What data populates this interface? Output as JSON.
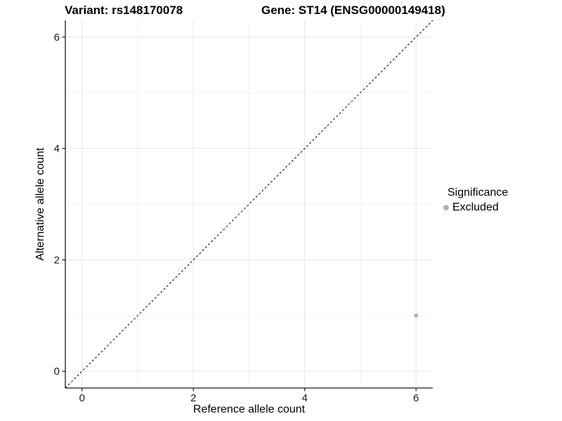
{
  "chart_data": {
    "type": "scatter",
    "titles": {
      "variant": "Variant: rs148170078",
      "gene": "Gene: ST14 (ENSG00000149418)"
    },
    "xlabel": "Reference allele count",
    "ylabel": "Alternative allele count",
    "xlim": [
      -0.3,
      6.3
    ],
    "ylim": [
      -0.3,
      6.3
    ],
    "x_ticks": [
      0,
      2,
      4,
      6
    ],
    "x_minor_ticks": [
      1,
      3,
      5
    ],
    "y_ticks": [
      0,
      2,
      4,
      6
    ],
    "y_minor_ticks": [
      1,
      3,
      5
    ],
    "grid": true,
    "identity_line": {
      "style": "dashed",
      "from": [
        -0.3,
        -0.3
      ],
      "to": [
        6.3,
        6.3
      ],
      "color": "#000000"
    },
    "series": [
      {
        "name": "Excluded",
        "color": "#b3b3b3",
        "points": [
          [
            6,
            1
          ]
        ]
      }
    ],
    "legend": {
      "title": "Significance",
      "position": "right",
      "items": [
        {
          "label": "Excluded",
          "color": "#b3b3b3"
        }
      ]
    },
    "colors": {
      "grid_major": "#e6e6e6",
      "grid_minor": "#f2f2f2",
      "axis": "#1a1a1a",
      "tick_text": "#1a1a1a",
      "background": "#ffffff"
    }
  }
}
